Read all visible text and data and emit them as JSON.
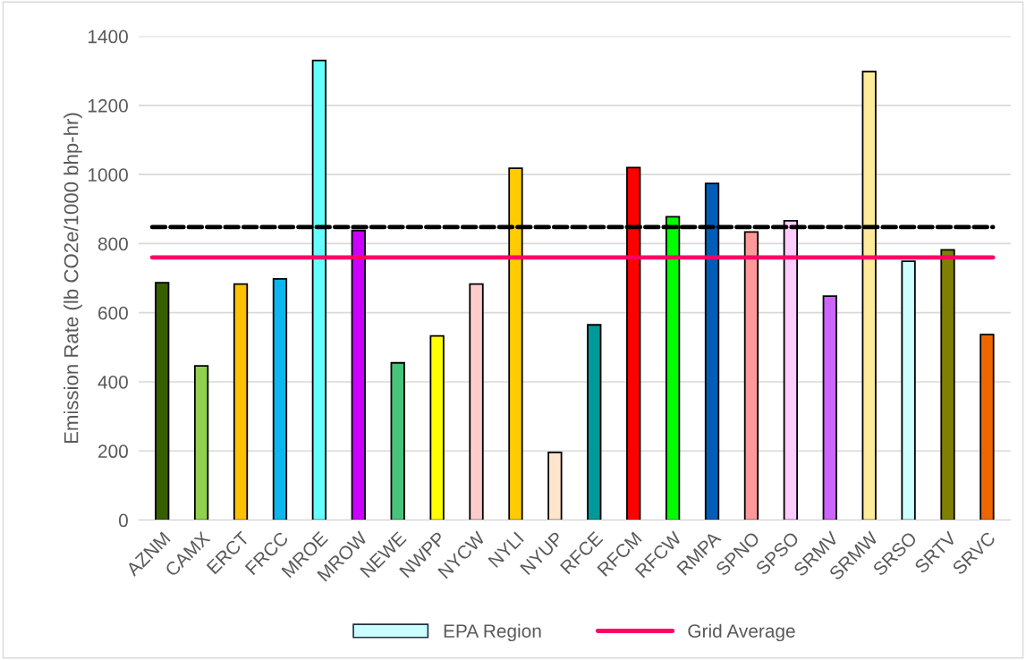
{
  "chart_data": {
    "type": "bar",
    "ylabel": "Emission Rate (lb CO2e/1000 bhp-hr)",
    "categories": [
      "AZNM",
      "CAMX",
      "ERCT",
      "FRCC",
      "MROE",
      "MROW",
      "NEWE",
      "NWPP",
      "NYCW",
      "NYLI",
      "NYUP",
      "RFCE",
      "RFCM",
      "RFCW",
      "RMPA",
      "SPNO",
      "SPSO",
      "SRMV",
      "SRMW",
      "SRSO",
      "SRTV",
      "SRVC"
    ],
    "series": [
      {
        "name": "EPA Region",
        "color": "#ccffff",
        "values": [
          687,
          446,
          683,
          698,
          1330,
          838,
          455,
          533,
          683,
          1018,
          196,
          565,
          1020,
          878,
          974,
          834,
          866,
          648,
          1298,
          749,
          782,
          537
        ],
        "colors": [
          "#375f00",
          "#92d050",
          "#ffc000",
          "#0bb7ee",
          "#66ffff",
          "#cc00ff",
          "#47c479",
          "#ffff00",
          "#ffcccc",
          "#ffcc00",
          "#ffe5cc",
          "#009999",
          "#ff0000",
          "#00ff00",
          "#005eb8",
          "#ff9999",
          "#ffccff",
          "#cc66ff",
          "#ffeb99",
          "#ccffff",
          "#808000",
          "#ee6600"
        ]
      }
    ],
    "ref_lines": [
      {
        "axis": "y",
        "value": 760,
        "label": "Grid Average",
        "color": "#ff0066",
        "line_style": "solid"
      },
      {
        "axis": "y",
        "value": 848,
        "color": "#000000",
        "line_style": "dashed"
      }
    ],
    "ylim": [
      0,
      1400
    ],
    "yticks": [
      0,
      200,
      400,
      600,
      800,
      1000,
      1200,
      1400
    ],
    "grid": "y",
    "legend": "bottom"
  }
}
